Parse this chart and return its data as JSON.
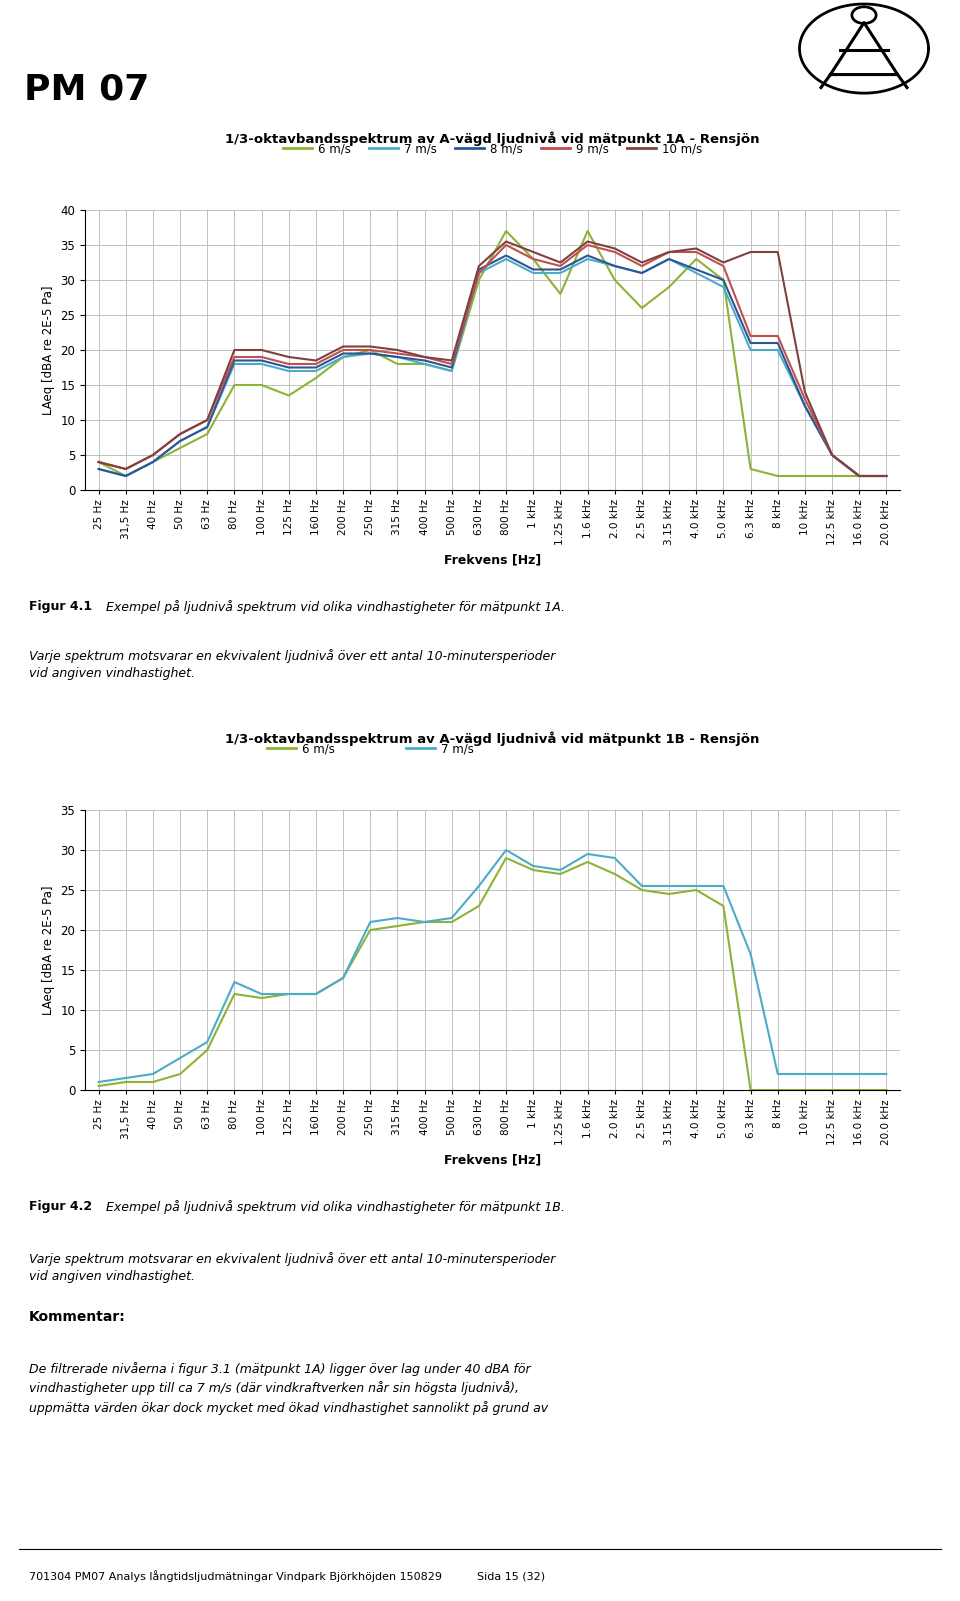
{
  "page_title": "PM 07",
  "chart1": {
    "title": "1/3-oktavbandsspektrum av A-vägd ljudnivå vid mätpunkt 1A - Rensjön",
    "ylabel": "LAeq [dBA re 2E-5 Pa]",
    "xlabel": "Frekvens [Hz]",
    "ylim": [
      0,
      40
    ],
    "yticks": [
      0,
      5,
      10,
      15,
      20,
      25,
      30,
      35,
      40
    ],
    "legend_labels": [
      "6 m/s",
      "7 m/s",
      "8 m/s",
      "9 m/s",
      "10 m/s"
    ],
    "colors": [
      "#8db336",
      "#4bacc6",
      "#2f5496",
      "#c0504d",
      "#7f4040"
    ]
  },
  "chart2": {
    "title": "1/3-oktavbandsspektrum av A-vägd ljudnivå vid mätpunkt 1B - Rensjön",
    "ylabel": "LAeq [dBA re 2E-5 Pa]",
    "xlabel": "Frekvens [Hz]",
    "ylim": [
      0,
      35
    ],
    "yticks": [
      0,
      5,
      10,
      15,
      20,
      25,
      30,
      35
    ],
    "legend_labels": [
      "6 m/s",
      "7 m/s"
    ],
    "colors": [
      "#8db336",
      "#4bacc6"
    ]
  },
  "freq_labels": [
    "25 Hz",
    "31,5 Hz",
    "40 Hz",
    "50 Hz",
    "63 Hz",
    "80 Hz",
    "100 Hz",
    "125 Hz",
    "160 Hz",
    "200 Hz",
    "250 Hz",
    "315 Hz",
    "400 Hz",
    "500 Hz",
    "630 Hz",
    "800 Hz",
    "1 kHz",
    "1.25 kHz",
    "1.6 kHz",
    "2.0 kHz",
    "2.5 kHz",
    "3.15 kHz",
    "4.0 kHz",
    "5.0 kHz",
    "6.3 kHz",
    "8 kHz",
    "10 kHz",
    "12.5 kHz",
    "16.0 kHz",
    "20.0 kHz"
  ],
  "c1_6ms": [
    4,
    2,
    4,
    6,
    8,
    15,
    15,
    13.5,
    16,
    19,
    20,
    18,
    18,
    17,
    30,
    37,
    33,
    28,
    37,
    30,
    26,
    29,
    33,
    30,
    3,
    2,
    2,
    2,
    2,
    2
  ],
  "c1_7ms": [
    3,
    2,
    4,
    7,
    9,
    18,
    18,
    17,
    17,
    19,
    19.5,
    19,
    18,
    17,
    31,
    33,
    31,
    31,
    33,
    32,
    31,
    33,
    31,
    29,
    20,
    20,
    12,
    5,
    2,
    2
  ],
  "c1_8ms": [
    3,
    2,
    4,
    7,
    9,
    18.5,
    18.5,
    17.5,
    17.5,
    19.5,
    19.5,
    19,
    18.5,
    17.5,
    31.5,
    33.5,
    31.5,
    31.5,
    33.5,
    32,
    31,
    33,
    31.5,
    30,
    21,
    21,
    12,
    5,
    2,
    2
  ],
  "c1_9ms": [
    4,
    3,
    5,
    8,
    10,
    19,
    19,
    18,
    18,
    20,
    20,
    19.5,
    19,
    18,
    31,
    35,
    33,
    32,
    35,
    34,
    32,
    34,
    34,
    32,
    22,
    22,
    13,
    5,
    2,
    2
  ],
  "c1_10ms": [
    4,
    3,
    5,
    8,
    10,
    20,
    20,
    19,
    18.5,
    20.5,
    20.5,
    20,
    19,
    18.5,
    32,
    35.5,
    34,
    32.5,
    35.5,
    34.5,
    32.5,
    34,
    34.5,
    32.5,
    34,
    34,
    14,
    5,
    2,
    2
  ],
  "c2_6ms": [
    0.5,
    1,
    1,
    2,
    5,
    12,
    11.5,
    12,
    12,
    14,
    20,
    20.5,
    21,
    21,
    23,
    29,
    27.5,
    27,
    28.5,
    27,
    25,
    24.5,
    25,
    23,
    0,
    0,
    0,
    0,
    0,
    0
  ],
  "c2_7ms": [
    1,
    1.5,
    2,
    4,
    6,
    13.5,
    12,
    12,
    12,
    14,
    21,
    21.5,
    21,
    21.5,
    25.5,
    30,
    28,
    27.5,
    29.5,
    29,
    25.5,
    25.5,
    25.5,
    25.5,
    17,
    2,
    2,
    2,
    2,
    2
  ],
  "fig1_caption_bold": "Figur 4.1",
  "fig1_caption_italic": "Exempel på ljudnivå spektrum vid olika vindhastigheter för mätpunkt 1A.",
  "fig1_caption2": "Varje spektrum motsvarar en ekvivalent ljudnivå över ett antal 10-minutersperioder\nvid angiven vindhastighet.",
  "fig2_caption_bold": "Figur 4.2",
  "fig2_caption_italic": "Exempel på ljudnivå spektrum vid olika vindhastigheter för mätpunkt 1B.",
  "fig2_caption2": "Varje spektrum motsvarar en ekvivalent ljudnivå över ett antal 10-minutersperioder\nvid angiven vindhastighet.",
  "kommentar_title": "Kommentar:",
  "kommentar_text": "De filtrerade nivåerna i figur 3.1 (mätpunkt 1A) ligger över lag under 40 dBA för\nvindhastigheter upp till ca 7 m/s (där vindkraftverken når sin högsta ljudnivå),\nuppmätta värden ökar dock mycket med ökad vindhastighet sannolikt på grund av",
  "footer": "701304 PM07 Analys långtidsljudmätningar Vindpark Björkhöjden 150829          Sida 15 (32)",
  "bg_color": "#ffffff",
  "grid_color": "#c0c0c0",
  "linewidth": 1.5
}
